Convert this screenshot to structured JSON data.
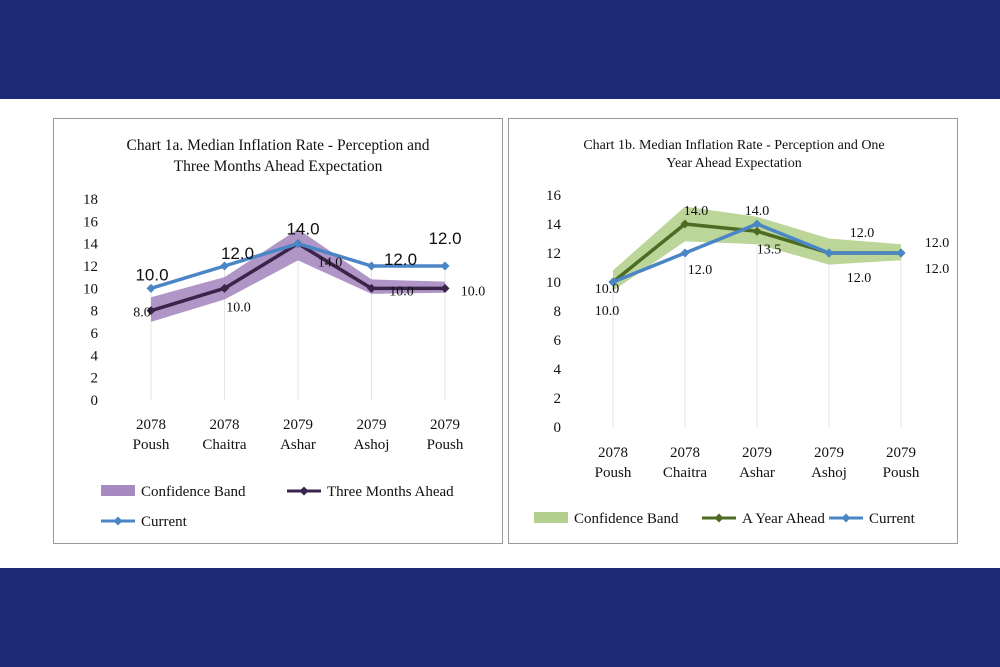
{
  "chart_data": [
    {
      "type": "line",
      "title_line1": "Chart 1a. Median Inflation Rate - Perception and",
      "title_line2": "Three Months Ahead Expectation",
      "categories": [
        [
          "2078",
          "Poush"
        ],
        [
          "2078",
          "Chaitra"
        ],
        [
          "2079",
          "Ashar"
        ],
        [
          "2079",
          "Ashoj"
        ],
        [
          "2079",
          "Poush"
        ]
      ],
      "ylim": [
        0,
        18
      ],
      "yticks": [
        "0",
        "2",
        "4",
        "6",
        "8",
        "10",
        "12",
        "14",
        "16",
        "18"
      ],
      "band": {
        "name": "Confidence Band",
        "color": "#a78bc0",
        "lower": [
          7.0,
          9.0,
          12.5,
          9.5,
          9.6
        ],
        "upper": [
          9.2,
          11.0,
          15.3,
          10.8,
          10.6
        ]
      },
      "series": [
        {
          "name": "Three Months Ahead",
          "color": "#3b2449",
          "values": [
            8.0,
            10.0,
            14.0,
            10.0,
            10.0
          ],
          "labels": [
            "8.0",
            "10.0",
            "14.0",
            "10.0",
            "10.0"
          ]
        },
        {
          "name": "Current",
          "color": "#4a86c5",
          "values": [
            10.0,
            12.0,
            14.0,
            12.0,
            12.0
          ],
          "labels": [
            "10.0",
            "12.0",
            "14.0",
            "12.0",
            "12.0"
          ]
        }
      ],
      "legend": [
        "Confidence Band",
        "Three Months Ahead",
        "Current"
      ],
      "legend_position": "bottom"
    },
    {
      "type": "line",
      "title_line1": "Chart 1b. Median Inflation Rate - Perception and One",
      "title_line2": "Year Ahead Expectation",
      "categories": [
        [
          "2078",
          "Poush"
        ],
        [
          "2078",
          "Chaitra"
        ],
        [
          "2079",
          "Ashar"
        ],
        [
          "2079",
          "Ashoj"
        ],
        [
          "2079",
          "Poush"
        ]
      ],
      "ylim": [
        0,
        16
      ],
      "yticks": [
        "0",
        "2",
        "4",
        "6",
        "8",
        "10",
        "12",
        "14",
        "16"
      ],
      "band": {
        "name": "Confidence Band",
        "color": "#b5d08e",
        "lower": [
          9.4,
          12.8,
          12.6,
          11.2,
          11.5
        ],
        "upper": [
          10.8,
          15.2,
          14.5,
          13.0,
          12.6
        ]
      },
      "series": [
        {
          "name": "A Year Ahead",
          "color": "#4e6b24",
          "values": [
            10.0,
            14.0,
            13.5,
            12.0,
            12.0
          ],
          "labels": [
            "10.0",
            "14.0",
            "13.5",
            "12.0",
            "12.0"
          ]
        },
        {
          "name": "Current",
          "color": "#4a86c5",
          "values": [
            10.0,
            12.0,
            14.0,
            12.0,
            12.0
          ],
          "labels": [
            "10.0",
            "12.0",
            "14.0",
            "12.0",
            "12.0"
          ]
        }
      ],
      "legend": [
        "Confidence Band",
        "A Year Ahead",
        "Current"
      ],
      "legend_position": "bottom"
    }
  ]
}
